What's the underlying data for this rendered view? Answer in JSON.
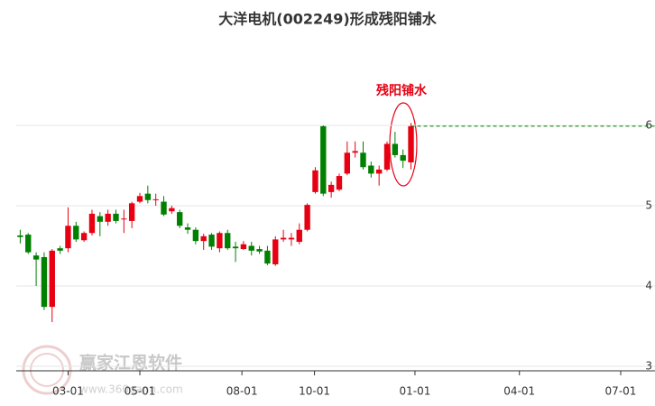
{
  "chart_data": {
    "type": "candlestick",
    "title": "大洋电机(002249)形成残阳铺水",
    "annotation": "残阳铺水",
    "watermark": "赢家江恩软件",
    "watermark_url": "www.360gann.com",
    "up_color": "#e60012",
    "down_color": "#008000",
    "grid": true,
    "open": [
      4.63,
      4.64,
      4.38,
      4.36,
      3.74,
      4.47,
      4.47,
      4.75,
      4.57,
      4.66,
      4.87,
      4.8,
      4.9,
      4.83,
      4.81,
      5.05,
      5.15,
      5.07,
      5.05,
      4.93,
      4.92,
      4.73,
      4.7,
      4.56,
      4.64,
      4.47,
      4.66,
      4.49,
      4.46,
      4.5,
      4.46,
      4.44,
      4.27,
      4.58,
      4.58,
      4.55,
      4.7,
      5.17,
      5.99,
      5.17,
      5.2,
      5.4,
      5.66,
      5.66,
      5.5,
      5.4,
      5.45,
      5.77,
      5.63,
      5.54
    ],
    "high": [
      4.7,
      4.66,
      4.42,
      4.42,
      4.46,
      4.5,
      4.98,
      4.8,
      4.68,
      4.95,
      4.92,
      4.95,
      4.95,
      4.95,
      5.05,
      5.16,
      5.25,
      5.15,
      5.12,
      5.0,
      4.95,
      4.78,
      4.73,
      4.65,
      4.66,
      4.68,
      4.7,
      4.55,
      4.56,
      4.55,
      4.5,
      4.5,
      4.62,
      4.7,
      4.66,
      4.78,
      5.03,
      5.48,
      6.0,
      5.3,
      5.4,
      5.8,
      5.8,
      5.8,
      5.55,
      5.5,
      5.8,
      5.92,
      5.7,
      6.03
    ],
    "low": [
      4.53,
      4.4,
      4.0,
      3.7,
      3.55,
      4.4,
      4.42,
      4.55,
      4.55,
      4.63,
      4.62,
      4.75,
      4.78,
      4.66,
      4.72,
      5.03,
      5.03,
      5.0,
      4.87,
      4.9,
      4.72,
      4.65,
      4.52,
      4.45,
      4.45,
      4.42,
      4.45,
      4.3,
      4.45,
      4.38,
      4.4,
      4.26,
      4.25,
      4.55,
      4.5,
      4.52,
      4.68,
      5.15,
      5.12,
      5.1,
      5.18,
      5.38,
      5.6,
      5.45,
      5.35,
      5.25,
      5.43,
      5.6,
      5.47,
      5.45
    ],
    "close": [
      4.61,
      4.42,
      4.33,
      3.74,
      4.44,
      4.44,
      4.75,
      4.58,
      4.66,
      4.9,
      4.8,
      4.9,
      4.81,
      4.84,
      5.03,
      5.12,
      5.07,
      5.08,
      4.89,
      4.97,
      4.75,
      4.7,
      4.56,
      4.62,
      4.49,
      4.66,
      4.47,
      4.47,
      4.52,
      4.44,
      4.43,
      4.28,
      4.58,
      4.6,
      4.6,
      4.7,
      5.01,
      5.44,
      5.15,
      5.26,
      5.37,
      5.66,
      5.68,
      5.48,
      5.4,
      5.45,
      5.77,
      5.63,
      5.56,
      5.99
    ],
    "xlim": [
      -0.5,
      79.6
    ],
    "xticks": [
      {
        "value": 6.0,
        "label": "03-01"
      },
      {
        "value": 15.0,
        "label": "05-01"
      },
      {
        "value": 27.8,
        "label": "08-01"
      },
      {
        "value": 36.9,
        "label": "10-01"
      },
      {
        "value": 49.5,
        "label": "01-01"
      },
      {
        "value": 62.6,
        "label": "04-01"
      },
      {
        "value": 75.3,
        "label": "07-01"
      }
    ],
    "ylim": [
      3,
      7
    ],
    "yticks": [
      3,
      4,
      5,
      6
    ]
  }
}
